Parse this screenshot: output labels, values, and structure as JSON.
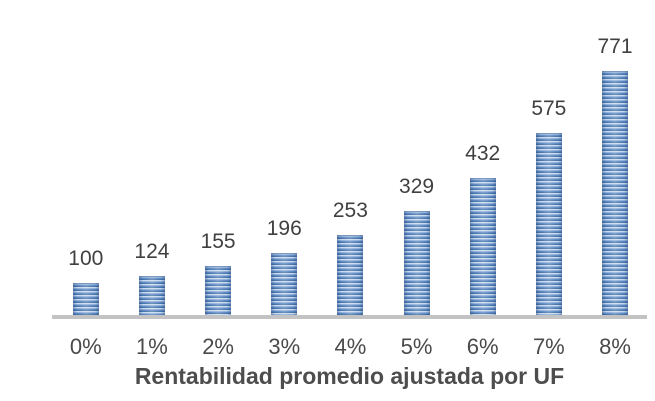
{
  "chart_data": {
    "type": "bar",
    "title": "",
    "categories": [
      "0%",
      "1%",
      "2%",
      "3%",
      "4%",
      "5%",
      "6%",
      "7%",
      "8%"
    ],
    "values": [
      100,
      124,
      155,
      196,
      253,
      329,
      432,
      575,
      771
    ],
    "xlabel": "Rentabilidad promedio ajustada por UF",
    "ylabel": "",
    "ylim": [
      0,
      800
    ],
    "grid": false,
    "legend": false,
    "data_labels": true,
    "bar_fill_pattern": "horizontal-stripes",
    "colors": {
      "bar_dark": "#40699f",
      "bar_mid": "#5585c2",
      "bar_light": "#e9f0f8",
      "axis_line": "#c3c3c3",
      "value_label": "#404040",
      "tick_label": "#4a4a4a",
      "axis_title": "#4d4d4d"
    }
  }
}
